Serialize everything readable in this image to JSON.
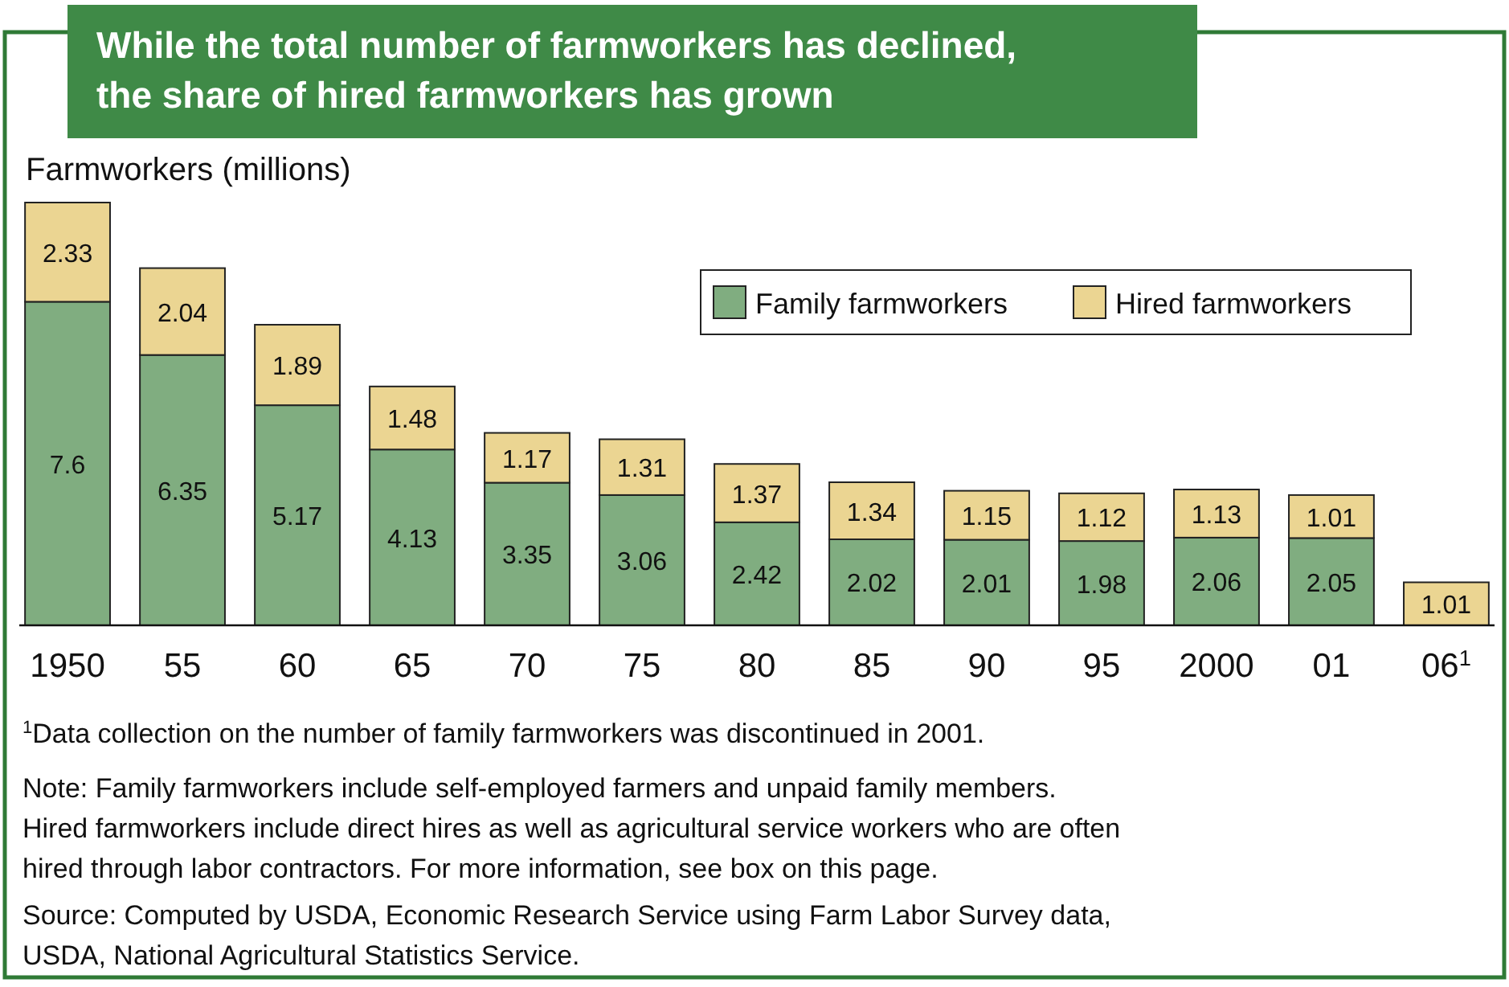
{
  "chart_data": {
    "type": "bar",
    "stacked": true,
    "title": "While the total number of farmworkers has declined,\nthe share of hired farmworkers has grown",
    "ylabel": "Farmworkers (millions)",
    "categories": [
      "1950",
      "55",
      "60",
      "65",
      "70",
      "75",
      "80",
      "85",
      "90",
      "95",
      "2000",
      "01",
      "06$^{1}$"
    ],
    "series": [
      {
        "name": "Family farmworkers",
        "color": "#80ad80",
        "values": [
          7.6,
          6.35,
          5.17,
          4.13,
          3.35,
          3.06,
          2.42,
          2.02,
          2.01,
          1.98,
          2.06,
          2.05,
          null
        ]
      },
      {
        "name": "Hired farmworkers",
        "color": "#ebd592",
        "values": [
          2.33,
          2.04,
          1.89,
          1.48,
          1.17,
          1.31,
          1.37,
          1.34,
          1.15,
          1.12,
          1.13,
          1.01,
          1.01
        ]
      }
    ],
    "data_labels": true,
    "legend": "top right",
    "annotations": [
      "$^{1}$Data collection on the number of family farmworkers was discontinued in 2001.",
      "Note:  Family farmworkers include self-employed farmers and unpaid family members.\nHired farmworkers include direct hires as well as agricultural service workers who are often\nhired through labor contractors.  For more information, see box on this page.",
      "Source:  Computed by USDA, Economic Research Service using Farm Labor Survey data,\nUSDA, National Agricultural Statistics Service."
    ]
  }
}
